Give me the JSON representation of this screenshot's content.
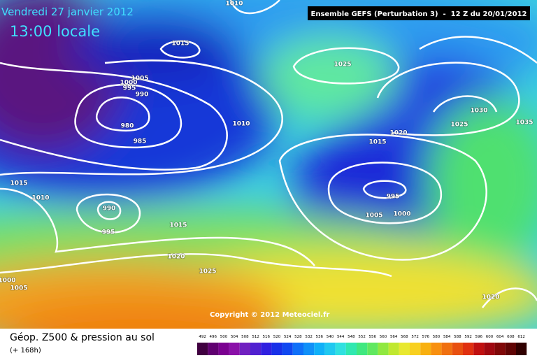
{
  "header": {
    "date": "Vendredi 27 janvier 2012",
    "time": "13:00 locale",
    "model": "Ensemble GEFS (Perturbation 3)  -  12 Z du 20/01/2012"
  },
  "copyright": "Copyright © 2012 Meteociel.fr",
  "footer": {
    "title": "Géop. Z500 & pression au sol",
    "lead": "(+ 168h)"
  },
  "isobar_labels": [
    "1010",
    "1015",
    "1005",
    "1000",
    "995",
    "990",
    "980",
    "985",
    "1010",
    "1025",
    "1030",
    "1025",
    "1035",
    "1020",
    "1015",
    "995",
    "1005",
    "1000",
    "1015",
    "1010",
    "990",
    "995",
    "1015",
    "1020",
    "1025",
    "1000",
    "1005",
    "1020"
  ],
  "legend": [
    492,
    496,
    500,
    504,
    508,
    512,
    516,
    520,
    524,
    528,
    532,
    536,
    540,
    544,
    548,
    552,
    556,
    560,
    564,
    568,
    572,
    576,
    580,
    584,
    588,
    592,
    596,
    600,
    604,
    608,
    612
  ]
}
